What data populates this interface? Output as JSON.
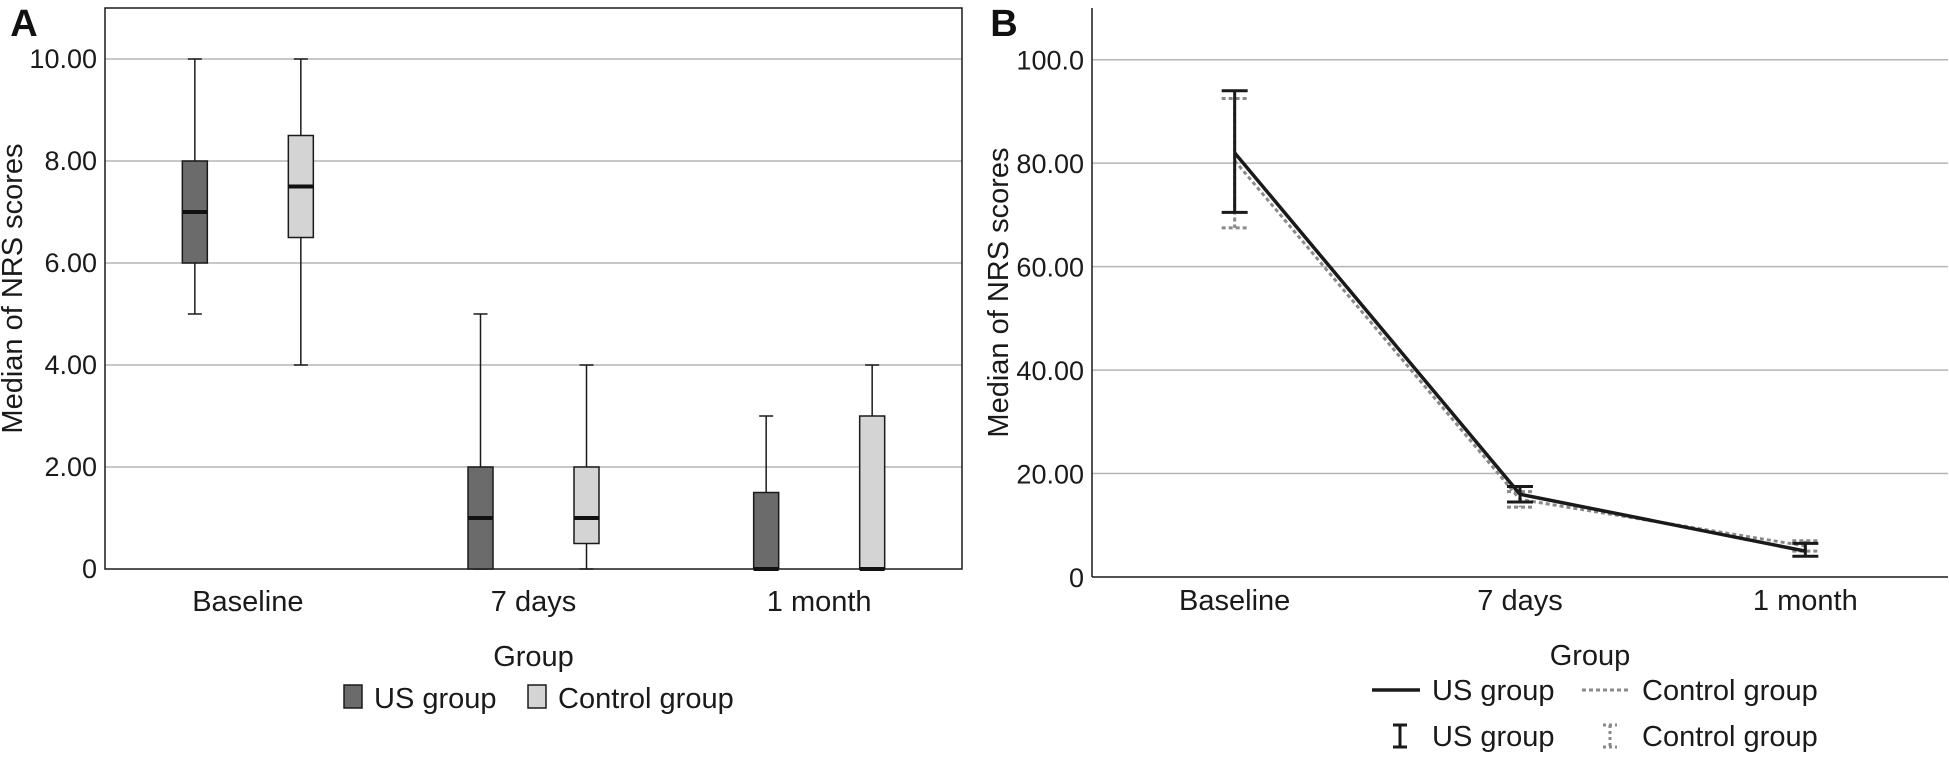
{
  "chart_data": [
    {
      "panel": "A",
      "type": "box",
      "title": "",
      "xlabel": "Group",
      "ylabel": "Median of NRS scores",
      "ylim": [
        0,
        11
      ],
      "yticks": [
        0,
        2,
        4,
        6,
        8,
        10
      ],
      "ytick_labels": [
        "0",
        "2.00",
        "4.00",
        "6.00",
        "8.00",
        "10.00"
      ],
      "grid": true,
      "legend_position": "bottom",
      "categories": [
        "Baseline",
        "7 days",
        "1 month"
      ],
      "series": [
        {
          "name": "US group",
          "color": "#6b6b6b",
          "boxes": [
            {
              "min": 5,
              "q1": 6,
              "median": 7,
              "q3": 8,
              "max": 10
            },
            {
              "min": 0,
              "q1": 0,
              "median": 1,
              "q3": 2,
              "max": 5
            },
            {
              "min": 0,
              "q1": 0,
              "median": 0,
              "q3": 1.5,
              "max": 3
            }
          ]
        },
        {
          "name": "Control group",
          "color": "#d4d4d4",
          "boxes": [
            {
              "min": 4,
              "q1": 6.5,
              "median": 7.5,
              "q3": 8.5,
              "max": 10
            },
            {
              "min": 0,
              "q1": 0.5,
              "median": 1,
              "q3": 2,
              "max": 4
            },
            {
              "min": 0,
              "q1": 0,
              "median": 0,
              "q3": 3,
              "max": 4
            }
          ]
        }
      ]
    },
    {
      "panel": "B",
      "type": "line",
      "title": "",
      "xlabel": "Group",
      "ylabel": "Median of NRS scores",
      "ylim": [
        0,
        110
      ],
      "yticks": [
        0,
        20,
        40,
        60,
        80,
        100
      ],
      "ytick_labels": [
        "0",
        "20.00",
        "40.00",
        "60.00",
        "80.00",
        "100.0"
      ],
      "grid": true,
      "legend_position": "bottom",
      "categories": [
        "Baseline",
        "7 days",
        "1 month"
      ],
      "series": [
        {
          "name": "US group",
          "color": "#1a1a1a",
          "style": "solid",
          "values": [
            82,
            16,
            5
          ],
          "error_low": [
            70.5,
            14.5,
            4
          ],
          "error_high": [
            94,
            17.5,
            6.5
          ]
        },
        {
          "name": "Control group",
          "color": "#8a8a8a",
          "style": "dotted",
          "values": [
            80.5,
            15,
            6
          ],
          "error_low": [
            67.5,
            13.5,
            5
          ],
          "error_high": [
            92.5,
            16.5,
            7
          ]
        }
      ],
      "legend_entries": [
        {
          "label": "US group",
          "symbol": "line-solid"
        },
        {
          "label": "Control group",
          "symbol": "line-dotted"
        },
        {
          "label": "US group",
          "symbol": "errorbar-solid"
        },
        {
          "label": "Control group",
          "symbol": "errorbar-dotted"
        }
      ]
    }
  ]
}
